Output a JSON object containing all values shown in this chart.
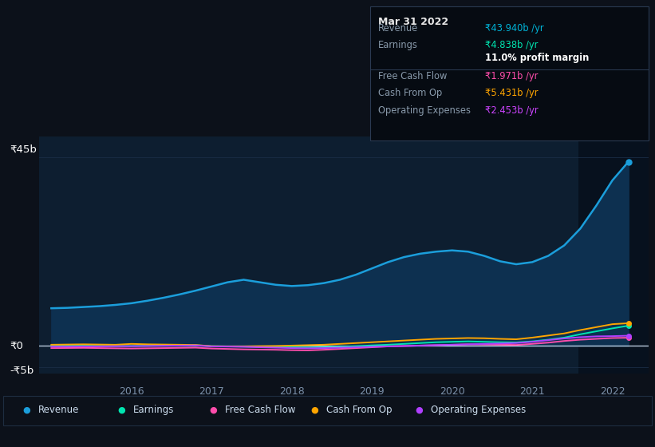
{
  "bg_color": "#0c111a",
  "plot_bg_color": "#0d1e30",
  "grid_color": "#1a2d45",
  "text_color": "#ffffff",
  "dim_text_color": "#7a8fa8",
  "ylim": [
    -6.5,
    50
  ],
  "xlim": [
    2014.85,
    2022.45
  ],
  "ytick_labels": [
    "₹45b",
    "₹0",
    "-₹5b"
  ],
  "xtick_years": [
    2016,
    2017,
    2018,
    2019,
    2020,
    2021,
    2022
  ],
  "highlight_x_start": 2021.58,
  "tooltip": {
    "date": "Mar 31 2022",
    "rows": [
      {
        "label": "Revenue",
        "value": "₹43.940b /yr",
        "value_color": "#00b4d8"
      },
      {
        "label": "Earnings",
        "value": "₹4.838b /yr",
        "value_color": "#00e5b0"
      },
      {
        "label": "",
        "value": "11.0% profit margin",
        "value_color": "#ffffff",
        "value_bold": true
      },
      {
        "label": "Free Cash Flow",
        "value": "₹1.971b /yr",
        "value_color": "#ff4dab"
      },
      {
        "label": "Cash From Op",
        "value": "₹5.431b /yr",
        "value_color": "#ffa500"
      },
      {
        "label": "Operating Expenses",
        "value": "₹2.453b /yr",
        "value_color": "#cc44ff"
      }
    ]
  },
  "revenue": {
    "x": [
      2015.0,
      2015.2,
      2015.4,
      2015.6,
      2015.8,
      2016.0,
      2016.2,
      2016.4,
      2016.6,
      2016.8,
      2017.0,
      2017.2,
      2017.4,
      2017.6,
      2017.8,
      2018.0,
      2018.2,
      2018.4,
      2018.6,
      2018.8,
      2019.0,
      2019.2,
      2019.4,
      2019.6,
      2019.8,
      2020.0,
      2020.2,
      2020.4,
      2020.6,
      2020.8,
      2021.0,
      2021.2,
      2021.4,
      2021.6,
      2021.8,
      2022.0,
      2022.2
    ],
    "y": [
      9.0,
      9.1,
      9.3,
      9.5,
      9.8,
      10.2,
      10.8,
      11.5,
      12.3,
      13.2,
      14.2,
      15.2,
      15.8,
      15.2,
      14.6,
      14.3,
      14.5,
      15.0,
      15.8,
      17.0,
      18.5,
      20.0,
      21.2,
      22.0,
      22.5,
      22.8,
      22.5,
      21.5,
      20.2,
      19.5,
      20.0,
      21.5,
      24.0,
      28.0,
      33.5,
      39.5,
      43.94
    ],
    "color": "#1b9edb",
    "fill_color": "#0d3050",
    "label": "Revenue"
  },
  "earnings": {
    "x": [
      2015.0,
      2015.2,
      2015.4,
      2015.6,
      2015.8,
      2016.0,
      2016.2,
      2016.4,
      2016.6,
      2016.8,
      2017.0,
      2017.2,
      2017.4,
      2017.6,
      2017.8,
      2018.0,
      2018.2,
      2018.4,
      2018.6,
      2018.8,
      2019.0,
      2019.2,
      2019.4,
      2019.6,
      2019.8,
      2020.0,
      2020.2,
      2020.4,
      2020.6,
      2020.8,
      2021.0,
      2021.2,
      2021.4,
      2021.6,
      2021.8,
      2022.0,
      2022.2
    ],
    "y": [
      0.1,
      0.1,
      0.1,
      0.05,
      0.0,
      0.0,
      0.05,
      0.1,
      0.15,
      0.2,
      -0.05,
      -0.1,
      -0.15,
      -0.2,
      -0.2,
      -0.3,
      -0.35,
      -0.3,
      -0.2,
      -0.05,
      0.15,
      0.3,
      0.5,
      0.7,
      0.9,
      1.0,
      1.1,
      1.0,
      0.9,
      0.85,
      1.1,
      1.5,
      2.0,
      2.8,
      3.5,
      4.2,
      4.838
    ],
    "color": "#00e5b0",
    "label": "Earnings"
  },
  "fcf": {
    "x": [
      2015.0,
      2015.2,
      2015.4,
      2015.6,
      2015.8,
      2016.0,
      2016.2,
      2016.4,
      2016.6,
      2016.8,
      2017.0,
      2017.2,
      2017.4,
      2017.6,
      2017.8,
      2018.0,
      2018.2,
      2018.4,
      2018.6,
      2018.8,
      2019.0,
      2019.2,
      2019.4,
      2019.6,
      2019.8,
      2020.0,
      2020.2,
      2020.4,
      2020.6,
      2020.8,
      2021.0,
      2021.2,
      2021.4,
      2021.6,
      2021.8,
      2022.0,
      2022.2
    ],
    "y": [
      -0.5,
      -0.48,
      -0.45,
      -0.5,
      -0.55,
      -0.6,
      -0.55,
      -0.5,
      -0.45,
      -0.4,
      -0.6,
      -0.7,
      -0.8,
      -0.85,
      -0.9,
      -1.0,
      -1.05,
      -0.9,
      -0.7,
      -0.5,
      -0.3,
      -0.1,
      0.0,
      0.1,
      0.2,
      0.3,
      0.4,
      0.35,
      0.3,
      0.25,
      0.5,
      0.8,
      1.2,
      1.5,
      1.7,
      1.9,
      1.971
    ],
    "color": "#ff4dab",
    "label": "Free Cash Flow"
  },
  "cashop": {
    "x": [
      2015.0,
      2015.2,
      2015.4,
      2015.6,
      2015.8,
      2016.0,
      2016.2,
      2016.4,
      2016.6,
      2016.8,
      2017.0,
      2017.2,
      2017.4,
      2017.6,
      2017.8,
      2018.0,
      2018.2,
      2018.4,
      2018.6,
      2018.8,
      2019.0,
      2019.2,
      2019.4,
      2019.6,
      2019.8,
      2020.0,
      2020.2,
      2020.4,
      2020.6,
      2020.8,
      2021.0,
      2021.2,
      2021.4,
      2021.6,
      2021.8,
      2022.0,
      2022.2
    ],
    "y": [
      0.3,
      0.35,
      0.4,
      0.35,
      0.3,
      0.5,
      0.4,
      0.35,
      0.3,
      0.25,
      -0.05,
      -0.1,
      -0.1,
      -0.05,
      0.0,
      0.1,
      0.2,
      0.3,
      0.5,
      0.7,
      0.9,
      1.1,
      1.3,
      1.5,
      1.7,
      1.8,
      1.9,
      1.85,
      1.7,
      1.6,
      2.0,
      2.5,
      3.0,
      3.8,
      4.5,
      5.2,
      5.431
    ],
    "color": "#ffa500",
    "label": "Cash From Op"
  },
  "opex": {
    "x": [
      2015.0,
      2015.2,
      2015.4,
      2015.6,
      2015.8,
      2016.0,
      2016.2,
      2016.4,
      2016.6,
      2016.8,
      2017.0,
      2017.2,
      2017.4,
      2017.6,
      2017.8,
      2018.0,
      2018.2,
      2018.4,
      2018.6,
      2018.8,
      2019.0,
      2019.2,
      2019.4,
      2019.6,
      2019.8,
      2020.0,
      2020.2,
      2020.4,
      2020.6,
      2020.8,
      2021.0,
      2021.2,
      2021.4,
      2021.6,
      2021.8,
      2022.0,
      2022.2
    ],
    "y": [
      -0.15,
      -0.15,
      -0.1,
      -0.1,
      -0.05,
      -0.05,
      0.0,
      0.05,
      0.1,
      0.15,
      -0.1,
      -0.15,
      -0.2,
      -0.3,
      -0.4,
      -0.5,
      -0.55,
      -0.5,
      -0.4,
      -0.3,
      -0.2,
      -0.1,
      0.0,
      0.1,
      0.2,
      0.3,
      0.4,
      0.5,
      0.6,
      0.7,
      1.0,
      1.4,
      1.8,
      2.1,
      2.3,
      2.35,
      2.453
    ],
    "color": "#b03fff",
    "label": "Operating Expenses"
  },
  "legend": [
    {
      "label": "Revenue",
      "color": "#1b9edb"
    },
    {
      "label": "Earnings",
      "color": "#00e5b0"
    },
    {
      "label": "Free Cash Flow",
      "color": "#ff4dab"
    },
    {
      "label": "Cash From Op",
      "color": "#ffa500"
    },
    {
      "label": "Operating Expenses",
      "color": "#b03fff"
    }
  ]
}
